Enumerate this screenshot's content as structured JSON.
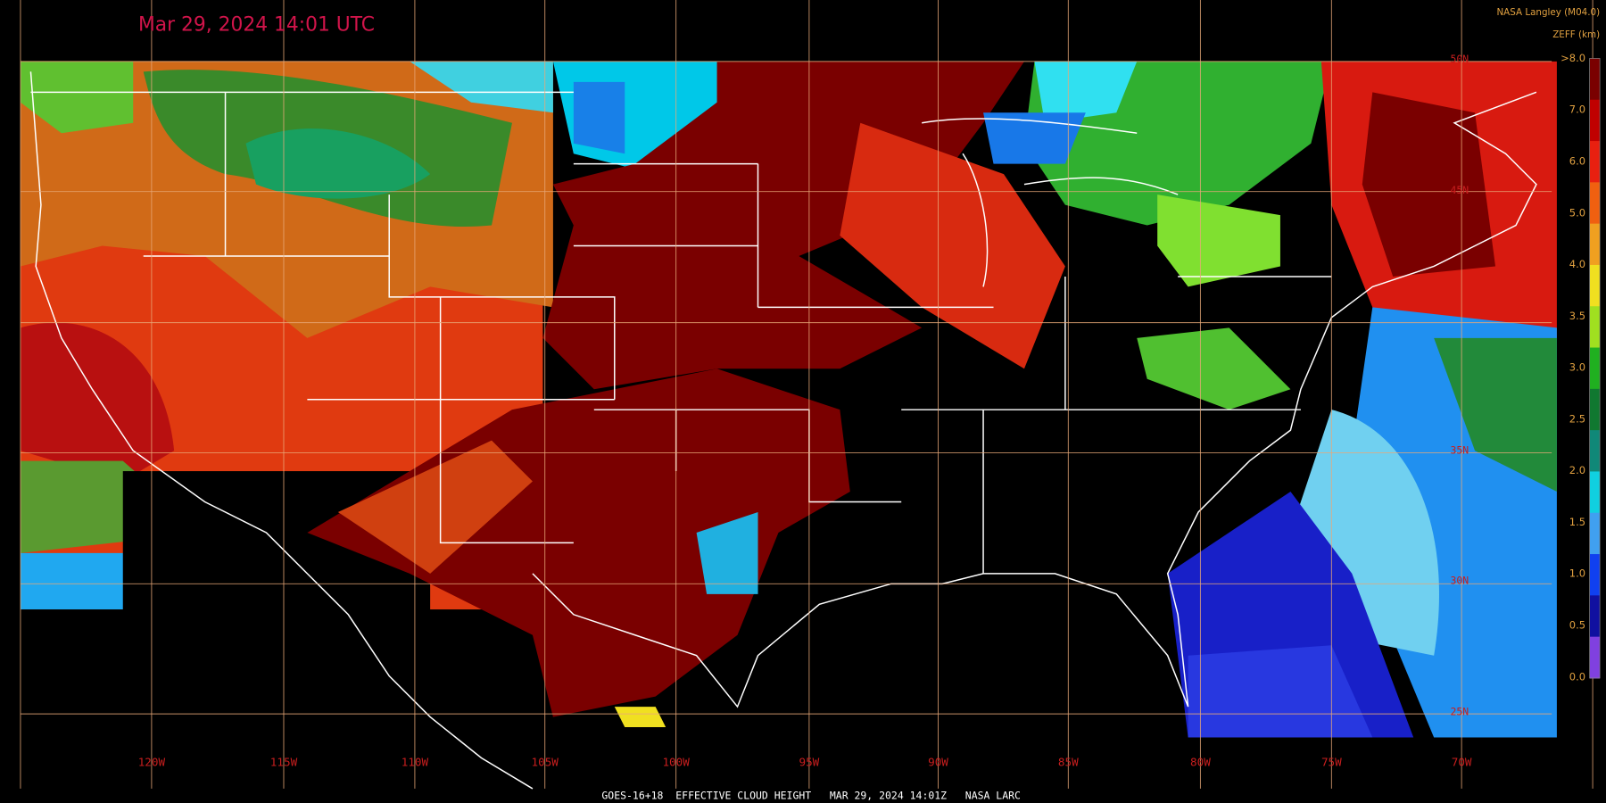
{
  "header": {
    "title": "Mar 29, 2024 14:01 UTC",
    "source": "NASA Langley (M04.0)"
  },
  "legend": {
    "title": "ZEFF (km)",
    "labels": [
      ">8.0",
      "7.0",
      "6.0",
      "5.0",
      "4.0",
      "3.5",
      "3.0",
      "2.5",
      "2.0",
      "1.5",
      "1.0",
      "0.5",
      "0.0"
    ]
  },
  "map": {
    "longitude_labels": [
      "120W",
      "115W",
      "110W",
      "105W",
      "100W",
      "95W",
      "90W",
      "85W",
      "80W",
      "75W",
      "70W"
    ],
    "latitude_labels": [
      "50N",
      "45N",
      "35N",
      "30N",
      "25N"
    ]
  },
  "footer": {
    "caption": "GOES-16+18  EFFECTIVE CLOUD HEIGHT   MAR 29, 2024 14:01Z   NASA LARC"
  }
}
